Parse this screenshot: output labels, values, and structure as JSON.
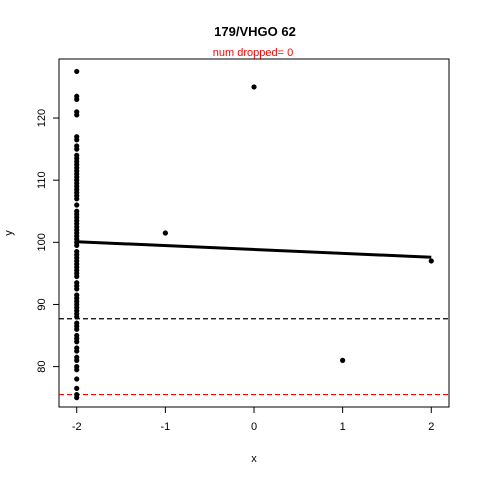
{
  "chart_data": {
    "type": "scatter",
    "title": "179/VHGO 62",
    "subtitle": "num dropped= 0",
    "xlabel": "x",
    "ylabel": "y",
    "xlim": [
      -2.2,
      2.2
    ],
    "ylim": [
      73.5,
      129.5
    ],
    "x_ticks": [
      -2,
      -1,
      0,
      1,
      2
    ],
    "y_ticks": [
      80,
      90,
      100,
      110,
      120
    ],
    "grid": false,
    "legend": "none",
    "colors": {
      "points": "#000000",
      "fit_line": "#000000",
      "ref_black": "#000000",
      "ref_red": "#ff0000",
      "subtitle": "#ff0000"
    },
    "points": [
      {
        "x": -2,
        "y": 127.5
      },
      {
        "x": -2,
        "y": 123.5
      },
      {
        "x": -2,
        "y": 123.0
      },
      {
        "x": -2,
        "y": 121.0
      },
      {
        "x": -2,
        "y": 120.5
      },
      {
        "x": -2,
        "y": 117.0
      },
      {
        "x": -2,
        "y": 116.5
      },
      {
        "x": -2,
        "y": 115.5
      },
      {
        "x": -2,
        "y": 115.0
      },
      {
        "x": -2,
        "y": 114.0
      },
      {
        "x": -2,
        "y": 113.5
      },
      {
        "x": -2,
        "y": 113.0
      },
      {
        "x": -2,
        "y": 112.5
      },
      {
        "x": -2,
        "y": 112.0
      },
      {
        "x": -2,
        "y": 111.5
      },
      {
        "x": -2,
        "y": 111.0
      },
      {
        "x": -2,
        "y": 110.5
      },
      {
        "x": -2,
        "y": 110.0
      },
      {
        "x": -2,
        "y": 109.5
      },
      {
        "x": -2,
        "y": 109.0
      },
      {
        "x": -2,
        "y": 108.5
      },
      {
        "x": -2,
        "y": 108.0
      },
      {
        "x": -2,
        "y": 107.5
      },
      {
        "x": -2,
        "y": 107.0
      },
      {
        "x": -2,
        "y": 106.0
      },
      {
        "x": -2,
        "y": 105.0
      },
      {
        "x": -2,
        "y": 104.5
      },
      {
        "x": -2,
        "y": 104.0
      },
      {
        "x": -2,
        "y": 103.5
      },
      {
        "x": -2,
        "y": 103.0
      },
      {
        "x": -2,
        "y": 102.5
      },
      {
        "x": -2,
        "y": 102.0
      },
      {
        "x": -2,
        "y": 101.5
      },
      {
        "x": -2,
        "y": 101.0
      },
      {
        "x": -2,
        "y": 100.5
      },
      {
        "x": -2,
        "y": 100.0
      },
      {
        "x": -2,
        "y": 99.5
      },
      {
        "x": -2,
        "y": 98.5
      },
      {
        "x": -2,
        "y": 98.0
      },
      {
        "x": -2,
        "y": 97.5
      },
      {
        "x": -2,
        "y": 97.0
      },
      {
        "x": -2,
        "y": 96.5
      },
      {
        "x": -2,
        "y": 96.0
      },
      {
        "x": -2,
        "y": 95.5
      },
      {
        "x": -2,
        "y": 95.0
      },
      {
        "x": -2,
        "y": 94.5
      },
      {
        "x": -2,
        "y": 93.5
      },
      {
        "x": -2,
        "y": 93.0
      },
      {
        "x": -2,
        "y": 92.5
      },
      {
        "x": -2,
        "y": 91.5
      },
      {
        "x": -2,
        "y": 91.0
      },
      {
        "x": -2,
        "y": 90.5
      },
      {
        "x": -2,
        "y": 90.0
      },
      {
        "x": -2,
        "y": 89.5
      },
      {
        "x": -2,
        "y": 89.0
      },
      {
        "x": -2,
        "y": 88.5
      },
      {
        "x": -2,
        "y": 88.0
      },
      {
        "x": -2,
        "y": 87.0
      },
      {
        "x": -2,
        "y": 86.5
      },
      {
        "x": -2,
        "y": 86.0
      },
      {
        "x": -2,
        "y": 85.0
      },
      {
        "x": -2,
        "y": 84.5
      },
      {
        "x": -2,
        "y": 84.0
      },
      {
        "x": -2,
        "y": 83.0
      },
      {
        "x": -2,
        "y": 82.5
      },
      {
        "x": -2,
        "y": 81.5
      },
      {
        "x": -2,
        "y": 81.0
      },
      {
        "x": -2,
        "y": 80.0
      },
      {
        "x": -2,
        "y": 79.5
      },
      {
        "x": -2,
        "y": 78.0
      },
      {
        "x": -2,
        "y": 76.5
      },
      {
        "x": -2,
        "y": 75.5
      },
      {
        "x": -2,
        "y": 75.0
      },
      {
        "x": -1,
        "y": 101.5
      },
      {
        "x": 0,
        "y": 125.0
      },
      {
        "x": 1,
        "y": 81.0
      },
      {
        "x": 2,
        "y": 97.0
      }
    ],
    "fit_line": {
      "x": [
        -2,
        2
      ],
      "y": [
        100.1,
        97.6
      ]
    },
    "hlines": [
      {
        "y": 87.7,
        "style": "dashed",
        "color": "#000000"
      },
      {
        "y": 75.5,
        "style": "dashed",
        "color": "#ff0000"
      }
    ]
  }
}
